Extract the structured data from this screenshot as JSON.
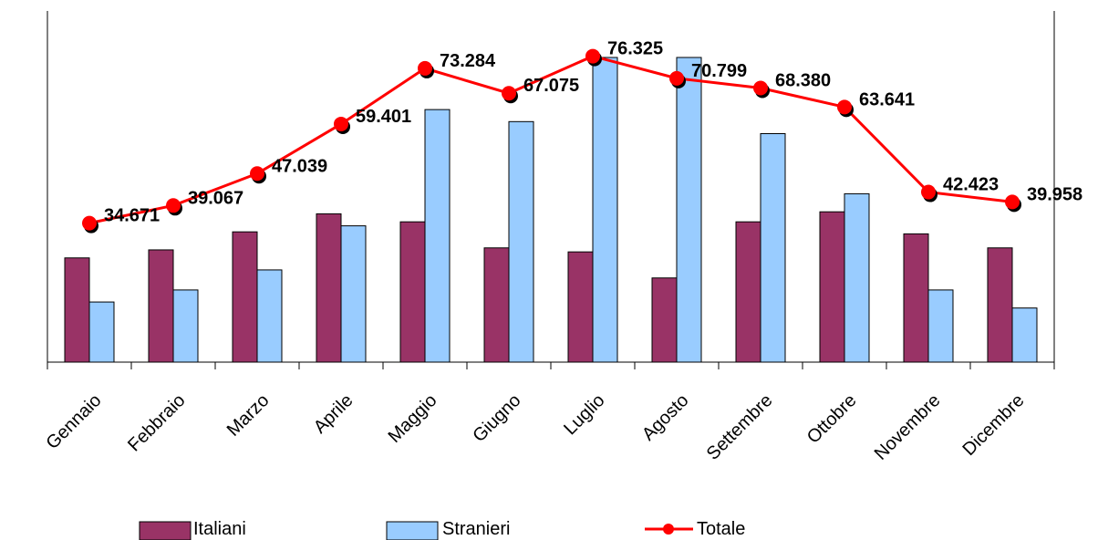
{
  "chart_data": {
    "type": "bar",
    "categories": [
      "Gennaio",
      "Febbraio",
      "Marzo",
      "Aprile",
      "Maggio",
      "Giugno",
      "Luglio",
      "Agosto",
      "Settembre",
      "Ottobre",
      "Novembre",
      "Dicembre"
    ],
    "series": [
      {
        "name": "Italiani",
        "type": "bar",
        "color": "#993366",
        "values": [
          26000,
          28000,
          32500,
          37000,
          35000,
          28500,
          27500,
          21000,
          35000,
          37500,
          32000,
          28500
        ]
      },
      {
        "name": "Stranieri",
        "type": "bar",
        "color": "#99CCFF",
        "values": [
          15000,
          18000,
          23000,
          34000,
          63000,
          60000,
          76000,
          76000,
          57000,
          42000,
          18000,
          13500
        ]
      },
      {
        "name": "Totale",
        "type": "line",
        "color": "#FF0000",
        "values": [
          34671,
          39067,
          47039,
          59401,
          73284,
          67075,
          76325,
          70799,
          68380,
          63641,
          42423,
          39958
        ]
      }
    ],
    "data_labels": [
      "34.671",
      "39.067",
      "47.039",
      "59.401",
      "73.284",
      "67.075",
      "76.325",
      "70.799",
      "68.380",
      "63.641",
      "42.423",
      "39.958"
    ],
    "ylim": [
      0,
      76000
    ],
    "legend": {
      "position": "bottom",
      "entries": [
        "Italiani",
        "Stranieri",
        "Totale"
      ]
    },
    "grid": false,
    "title": "",
    "xlabel": "",
    "ylabel": ""
  }
}
